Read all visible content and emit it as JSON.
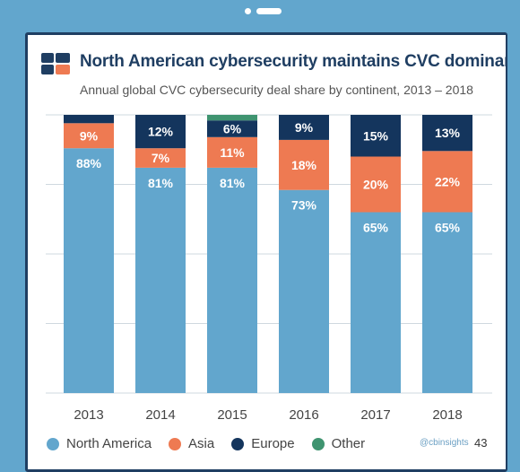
{
  "page": {
    "page_number": "43",
    "handle": "@cbinsights"
  },
  "colors": {
    "north_america": "#62a6cd",
    "asia": "#ee7a52",
    "europe": "#14355d",
    "other": "#3f9470",
    "title": "#1f3e62",
    "grid": "#cfd8df"
  },
  "logo": {
    "icon": "cb-insights-logo-icon"
  },
  "chart_data": {
    "type": "bar",
    "stacked": true,
    "title": "North American cybersecurity maintains CVC dominance",
    "subtitle": "Annual global CVC cybersecurity deal share by continent, 2013 – 2018",
    "xlabel": "",
    "ylabel": "",
    "ylim": [
      0,
      100
    ],
    "categories": [
      "2013",
      "2014",
      "2015",
      "2016",
      "2017",
      "2018"
    ],
    "series": [
      {
        "name": "North America",
        "values": [
          88,
          81,
          81,
          73,
          65,
          65
        ],
        "labels": [
          "88%",
          "81%",
          "81%",
          "73%",
          "65%",
          "65%"
        ]
      },
      {
        "name": "Asia",
        "values": [
          9,
          7,
          11,
          18,
          20,
          22
        ],
        "labels": [
          "9%",
          "7%",
          "11%",
          "18%",
          "20%",
          "22%"
        ]
      },
      {
        "name": "Europe",
        "values": [
          3,
          12,
          6,
          9,
          15,
          13
        ],
        "labels": [
          "",
          "12%",
          "6%",
          "9%",
          "15%",
          "13%"
        ]
      },
      {
        "name": "Other",
        "values": [
          0,
          0,
          2,
          0,
          0,
          0
        ],
        "labels": [
          "",
          "",
          "",
          "",
          "",
          ""
        ]
      }
    ],
    "grid": true,
    "legend_position": "bottom"
  }
}
